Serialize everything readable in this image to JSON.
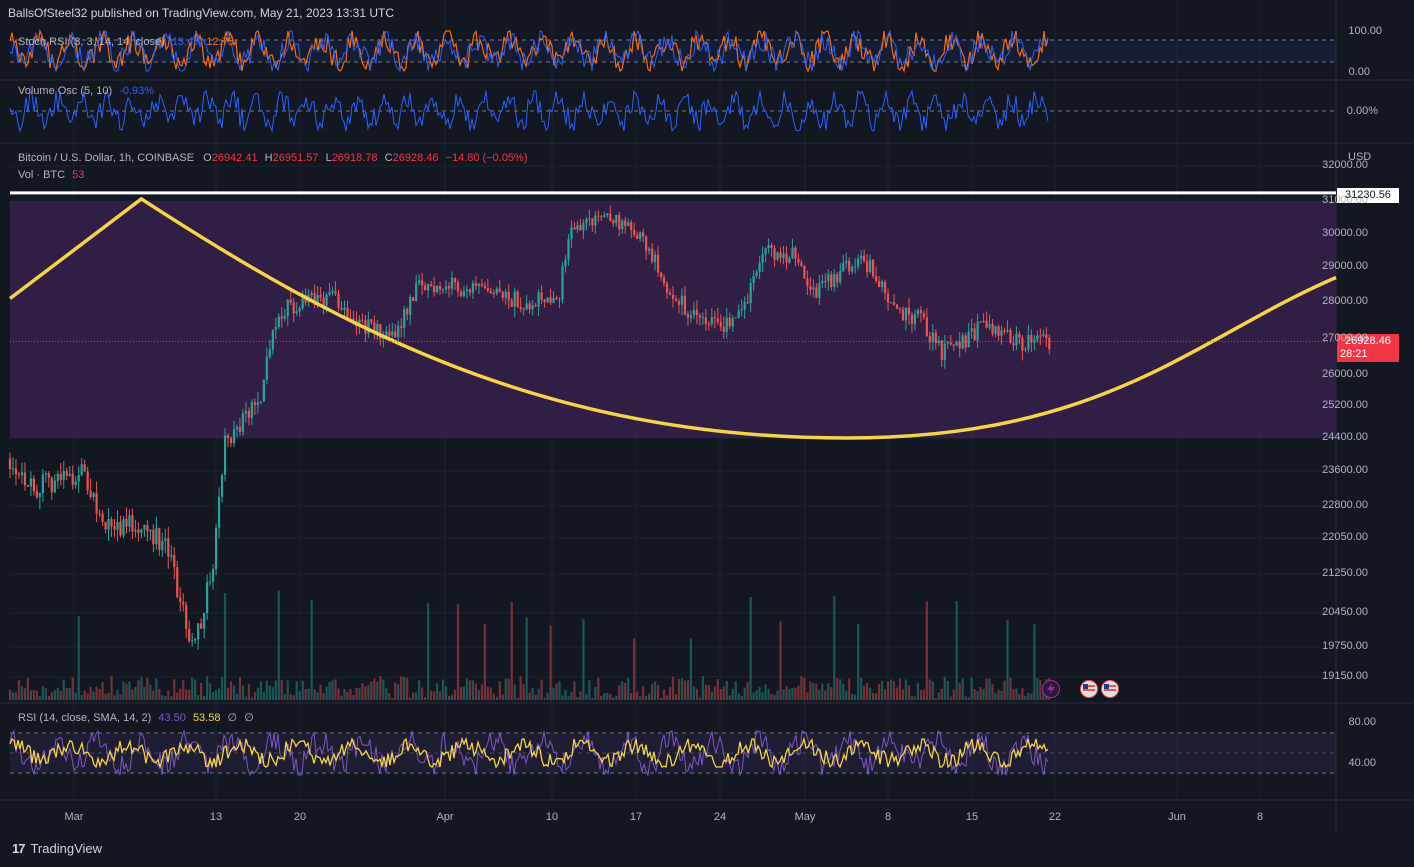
{
  "header": {
    "publisher_text": "BallsOfSteel32 published on TradingView.com, May 21, 2023 13:31 UTC"
  },
  "footer": {
    "brand": "TradingView",
    "logo_glyph": "17"
  },
  "colors": {
    "background": "#131722",
    "up": "#26a69a",
    "down": "#ef5350",
    "cup_line": "#f5d547",
    "band_fill": "#3b2150",
    "stoch_k": "#2962ff",
    "stoch_d": "#ff6d00",
    "vol_osc": "#2962ff",
    "rsi": "#7e57c2",
    "rsi_sma": "#f5d547",
    "resistance": "#ffffff",
    "last_price_tag": "#f23645"
  },
  "stoch_rsi": {
    "label": "Stoch RSI (3, 3, 14, 14, close)",
    "k_value": "13.49",
    "d_value": "12.75",
    "axis": [
      "100.00",
      "0.00"
    ]
  },
  "volume_osc": {
    "label": "Volume Osc (5, 10)",
    "value": "-0.93%",
    "axis": [
      "0.00%"
    ]
  },
  "main": {
    "symbol_label": "Bitcoin / U.S. Dollar, 1h, COINBASE",
    "o_label": "O",
    "o_value": "26942.41",
    "h_label": "H",
    "h_value": "26951.57",
    "l_label": "L",
    "l_value": "26918.78",
    "c_label": "C",
    "c_value": "26928.46",
    "change": "−14.80 (−0.05%)",
    "vol_label": "Vol · BTC",
    "vol_value": "53",
    "currency": "USD",
    "resistance_price": "31230.56",
    "last_price": "26928.46",
    "countdown": "28:21",
    "y_ticks": [
      "32000.00",
      "31000.00",
      "30000.00",
      "29000.00",
      "28000.00",
      "27000.00",
      "26000.00",
      "25200.00",
      "24400.00",
      "23600.00",
      "22800.00",
      "22050.00",
      "21250.00",
      "20450.00",
      "19750.00",
      "19150.00"
    ]
  },
  "rsi": {
    "label": "RSI (14, close, SMA, 14, 2)",
    "rsi_value": "43.50",
    "sma_value": "53.58",
    "extra1": "∅",
    "extra2": "∅",
    "axis": [
      "80.00",
      "40.00"
    ]
  },
  "x_axis": [
    "Mar",
    "13",
    "20",
    "Apr",
    "10",
    "17",
    "24",
    "May",
    "8",
    "15",
    "22",
    "Jun",
    "8"
  ],
  "chart_data": [
    {
      "type": "line",
      "title": "Stoch RSI (3, 3, 14, 14, close)",
      "series": [
        {
          "name": "K",
          "last": 13.49
        },
        {
          "name": "D",
          "last": 12.75
        }
      ],
      "ylim": [
        0,
        100
      ],
      "bands": [
        20,
        80
      ]
    },
    {
      "type": "line",
      "title": "Volume Osc (5, 10)",
      "series": [
        {
          "name": "Volume Osc",
          "last": -0.93
        }
      ],
      "unit": "%"
    },
    {
      "type": "candlestick",
      "title": "Bitcoin / U.S. Dollar, 1h, COINBASE",
      "ylabel": "USD",
      "ylim": [
        19150,
        32000
      ],
      "date_range": [
        "2023-02-23",
        "2023-05-21"
      ],
      "ohlc_last": {
        "open": 26942.41,
        "high": 26951.57,
        "low": 26918.78,
        "close": 26928.46
      },
      "price_path": [
        {
          "x": "2023-02-23",
          "y": 23900
        },
        {
          "x": "2023-02-25",
          "y": 23200
        },
        {
          "x": "2023-02-28",
          "y": 23500
        },
        {
          "x": "2023-03-01",
          "y": 23600
        },
        {
          "x": "2023-03-03",
          "y": 22300
        },
        {
          "x": "2023-03-06",
          "y": 22400
        },
        {
          "x": "2023-03-08",
          "y": 21900
        },
        {
          "x": "2023-03-10",
          "y": 20000
        },
        {
          "x": "2023-03-11",
          "y": 20300
        },
        {
          "x": "2023-03-12",
          "y": 21500
        },
        {
          "x": "2023-03-13",
          "y": 24300
        },
        {
          "x": "2023-03-14",
          "y": 24600
        },
        {
          "x": "2023-03-16",
          "y": 25500
        },
        {
          "x": "2023-03-17",
          "y": 27400
        },
        {
          "x": "2023-03-18",
          "y": 27800
        },
        {
          "x": "2023-03-20",
          "y": 28000
        },
        {
          "x": "2023-03-22",
          "y": 28200
        },
        {
          "x": "2023-03-24",
          "y": 27500
        },
        {
          "x": "2023-03-27",
          "y": 27000
        },
        {
          "x": "2023-03-29",
          "y": 28400
        },
        {
          "x": "2023-04-01",
          "y": 28500
        },
        {
          "x": "2023-04-04",
          "y": 28200
        },
        {
          "x": "2023-04-07",
          "y": 28000
        },
        {
          "x": "2023-04-10",
          "y": 28300
        },
        {
          "x": "2023-04-11",
          "y": 30200
        },
        {
          "x": "2023-04-14",
          "y": 30600
        },
        {
          "x": "2023-04-17",
          "y": 29800
        },
        {
          "x": "2023-04-19",
          "y": 28500
        },
        {
          "x": "2023-04-21",
          "y": 27600
        },
        {
          "x": "2023-04-24",
          "y": 27400
        },
        {
          "x": "2023-04-26",
          "y": 28300
        },
        {
          "x": "2023-04-27",
          "y": 29500
        },
        {
          "x": "2023-04-30",
          "y": 29300
        },
        {
          "x": "2023-05-01",
          "y": 28200
        },
        {
          "x": "2023-05-03",
          "y": 28700
        },
        {
          "x": "2023-05-05",
          "y": 29300
        },
        {
          "x": "2023-05-06",
          "y": 29000
        },
        {
          "x": "2023-05-08",
          "y": 27700
        },
        {
          "x": "2023-05-10",
          "y": 27600
        },
        {
          "x": "2023-05-12",
          "y": 26600
        },
        {
          "x": "2023-05-14",
          "y": 26900
        },
        {
          "x": "2023-05-15",
          "y": 27300
        },
        {
          "x": "2023-05-17",
          "y": 27100
        },
        {
          "x": "2023-05-19",
          "y": 26900
        },
        {
          "x": "2023-05-21",
          "y": 26928.46
        }
      ],
      "annotations": [
        {
          "type": "horizontal_line",
          "price": 31230.56,
          "color": "#ffffff"
        },
        {
          "type": "rectangle",
          "from_price": 31000,
          "to_price": 24400,
          "color": "#3b2150"
        },
        {
          "type": "curve",
          "label": "cup",
          "color": "#f5d547"
        }
      ]
    },
    {
      "type": "line",
      "title": "RSI (14, close, SMA, 14, 2)",
      "series": [
        {
          "name": "RSI",
          "last": 43.5
        },
        {
          "name": "SMA",
          "last": 53.58
        }
      ],
      "ylim": [
        20,
        100
      ],
      "bands": [
        30,
        70
      ]
    }
  ]
}
